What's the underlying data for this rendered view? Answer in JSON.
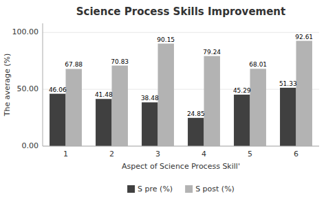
{
  "chart_data": {
    "type": "bar",
    "title": "Science Process Skills Improvement",
    "xlabel": "Aspect of Science Process Skill'",
    "ylabel": "The average (%)",
    "categories": [
      "1",
      "2",
      "3",
      "4",
      "5",
      "6"
    ],
    "series": [
      {
        "name": "S pre (%)",
        "color": "#404040",
        "values": [
          46.06,
          41.48,
          38.48,
          24.85,
          45.29,
          51.33
        ]
      },
      {
        "name": "S post (%)",
        "color": "#b3b3b3",
        "values": [
          67.88,
          70.83,
          90.15,
          79.24,
          68.01,
          92.61
        ]
      }
    ],
    "ylim": [
      0,
      108
    ],
    "yticks": [
      {
        "value": 0,
        "label": "0.00"
      },
      {
        "value": 50,
        "label": "50.00"
      },
      {
        "value": 100,
        "label": "100.00"
      }
    ],
    "grid": true,
    "legend": "bottom",
    "data_labels": true
  }
}
